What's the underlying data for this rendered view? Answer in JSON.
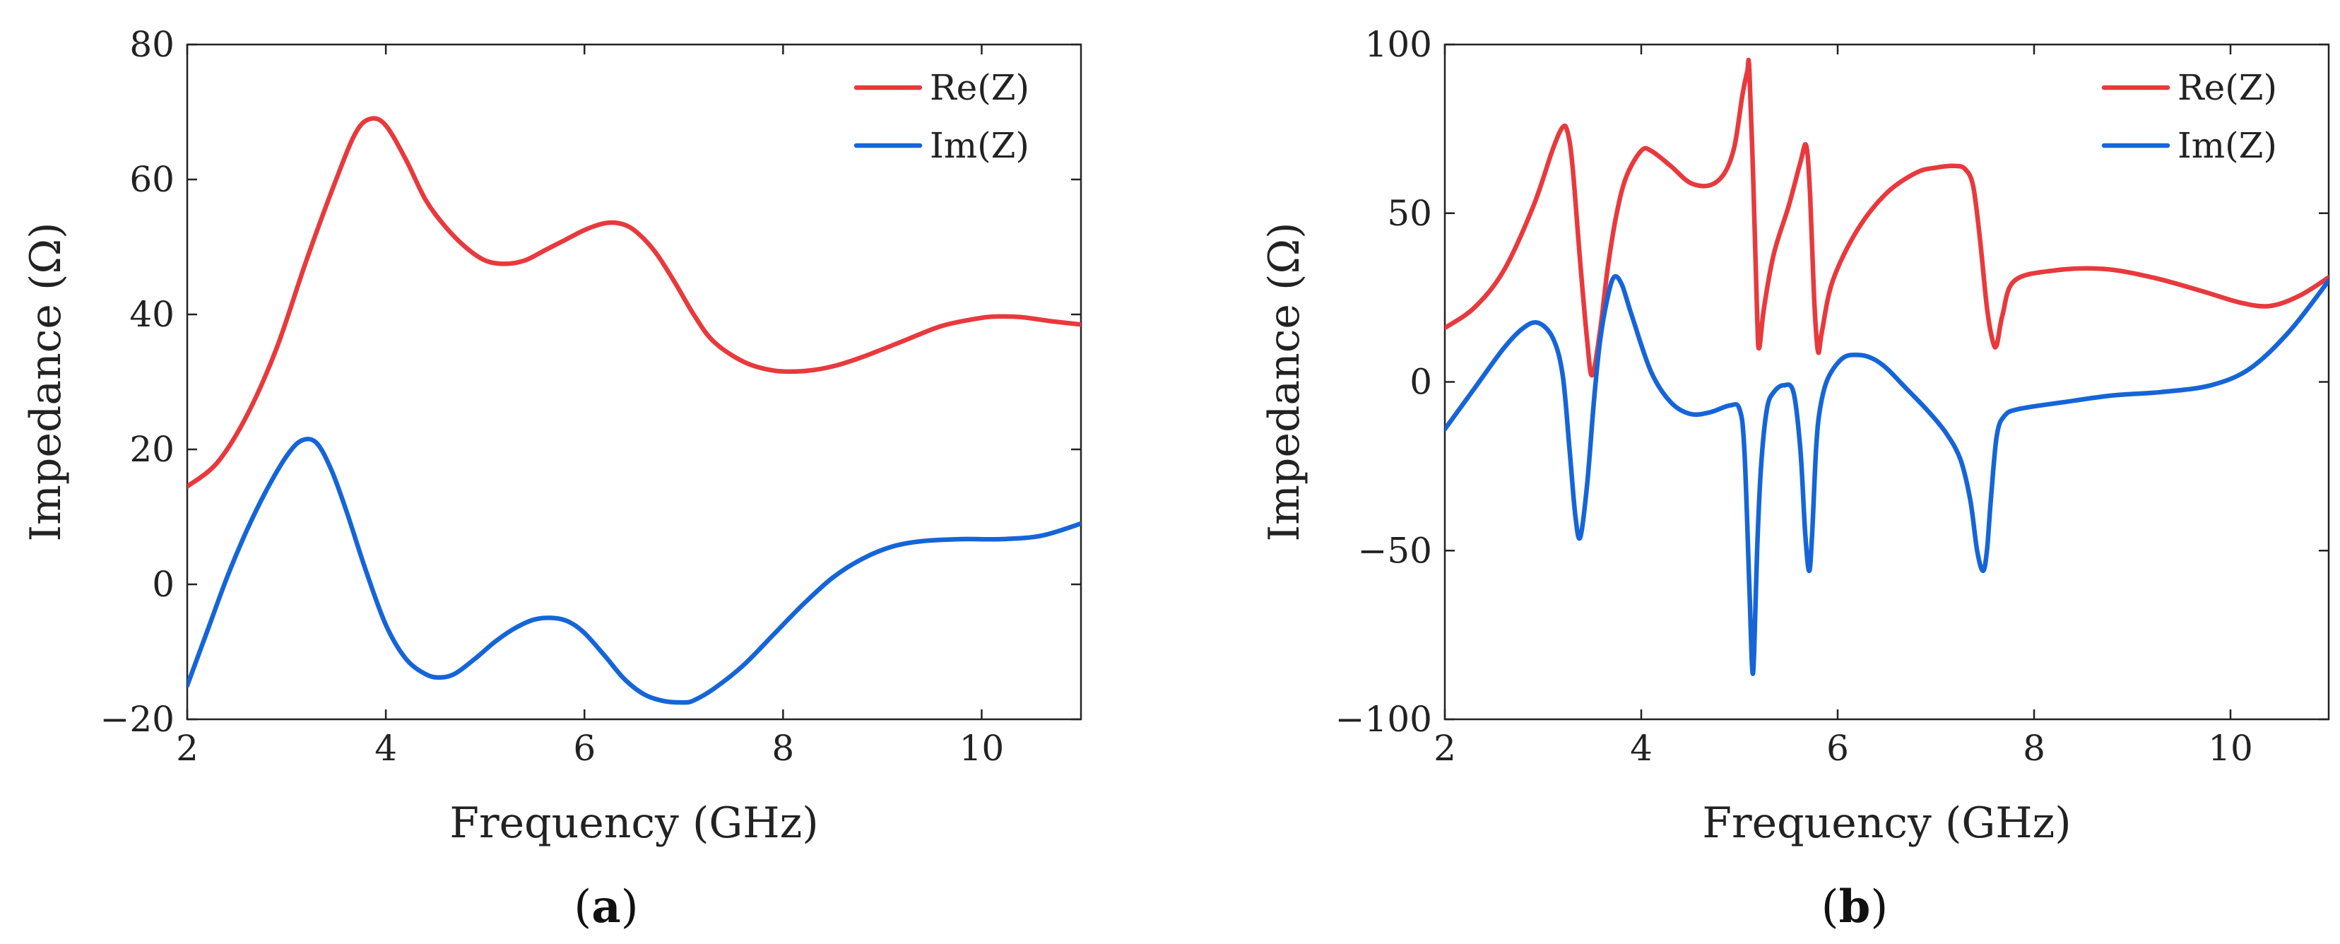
{
  "colors": {
    "re": "#e8393d",
    "im": "#1565d8",
    "axis": "#222222"
  },
  "chart_data": [
    {
      "type": "line",
      "panel": "a",
      "caption": {
        "open": "(",
        "letter": "a",
        "close": ")"
      },
      "xlabel": "Frequency (GHz)",
      "ylabel": "Impedance (Ω)",
      "xlim": [
        2,
        11
      ],
      "ylim": [
        -20,
        80
      ],
      "xticks": [
        2,
        4,
        6,
        8,
        10
      ],
      "xtick_labels": [
        "2",
        "4",
        "6",
        "8",
        "10"
      ],
      "yticks": [
        -20,
        0,
        20,
        40,
        60,
        80
      ],
      "ytick_labels": [
        "−20",
        "0",
        "20",
        "40",
        "60",
        "80"
      ],
      "grid": false,
      "legend_position": "top-right",
      "series": [
        {
          "name": "Re(Z)",
          "color": "#e8393d",
          "x": [
            2.0,
            2.3,
            2.6,
            2.9,
            3.2,
            3.5,
            3.7,
            3.85,
            4.0,
            4.2,
            4.4,
            4.6,
            4.8,
            5.0,
            5.2,
            5.4,
            5.6,
            5.8,
            6.0,
            6.2,
            6.35,
            6.5,
            6.7,
            6.9,
            7.1,
            7.3,
            7.6,
            7.9,
            8.2,
            8.5,
            8.8,
            9.2,
            9.6,
            10.0,
            10.2,
            10.4,
            10.7,
            11.0
          ],
          "values": [
            14.5,
            18,
            25,
            35,
            48,
            60,
            67,
            69,
            68,
            63,
            57,
            53,
            50,
            48,
            47.5,
            48,
            49.5,
            51,
            52.5,
            53.5,
            53.5,
            52.5,
            49.5,
            45,
            40,
            36,
            33,
            31.7,
            31.6,
            32.3,
            33.7,
            36,
            38.3,
            39.5,
            39.7,
            39.6,
            39,
            38.5
          ]
        },
        {
          "name": "Im(Z)",
          "color": "#1565d8",
          "x": [
            2.0,
            2.2,
            2.4,
            2.6,
            2.8,
            3.0,
            3.15,
            3.3,
            3.45,
            3.6,
            3.8,
            4.0,
            4.2,
            4.4,
            4.55,
            4.7,
            4.9,
            5.1,
            5.3,
            5.5,
            5.7,
            5.85,
            6.0,
            6.2,
            6.4,
            6.6,
            6.8,
            7.0,
            7.1,
            7.3,
            7.6,
            7.9,
            8.2,
            8.5,
            8.8,
            9.1,
            9.4,
            9.8,
            10.2,
            10.6,
            11.0
          ],
          "values": [
            -15,
            -7,
            1,
            8,
            14,
            19,
            21.3,
            21,
            17,
            11,
            2,
            -6,
            -11,
            -13.3,
            -13.8,
            -13.2,
            -11,
            -8.5,
            -6.5,
            -5.2,
            -5,
            -5.6,
            -7.2,
            -10.5,
            -14,
            -16.3,
            -17.3,
            -17.5,
            -17.2,
            -15.5,
            -12,
            -7.5,
            -3,
            1,
            3.8,
            5.6,
            6.4,
            6.7,
            6.7,
            7.2,
            9
          ]
        }
      ]
    },
    {
      "type": "line",
      "panel": "b",
      "caption": {
        "open": "(",
        "letter": "b",
        "close": ")"
      },
      "xlabel": "Frequency (GHz)",
      "ylabel": "Impedance (Ω)",
      "xlim": [
        2,
        11
      ],
      "ylim": [
        -100,
        100
      ],
      "xticks": [
        2,
        4,
        6,
        8,
        10
      ],
      "xtick_labels": [
        "2",
        "4",
        "6",
        "8",
        "10"
      ],
      "yticks": [
        -100,
        -50,
        0,
        50,
        100
      ],
      "ytick_labels": [
        "−100",
        "−50",
        "0",
        "50",
        "100"
      ],
      "grid": false,
      "legend_position": "top-right",
      "series": [
        {
          "name": "Re(Z)",
          "color": "#e8393d",
          "x": [
            2.0,
            2.3,
            2.6,
            2.9,
            3.1,
            3.2,
            3.25,
            3.3,
            3.38,
            3.45,
            3.5,
            3.58,
            3.66,
            3.75,
            3.85,
            4.0,
            4.1,
            4.3,
            4.5,
            4.7,
            4.85,
            4.95,
            5.03,
            5.08,
            5.1,
            5.14,
            5.18,
            5.2,
            5.25,
            5.35,
            5.5,
            5.62,
            5.68,
            5.72,
            5.76,
            5.8,
            5.84,
            5.95,
            6.2,
            6.5,
            6.8,
            7.0,
            7.2,
            7.3,
            7.38,
            7.45,
            7.52,
            7.58,
            7.62,
            7.68,
            7.8,
            8.2,
            8.7,
            9.2,
            9.7,
            10.1,
            10.4,
            10.7,
            11.0
          ],
          "values": [
            16,
            22,
            33,
            52,
            69,
            75.5,
            74,
            64,
            35,
            12,
            2,
            15,
            34,
            50,
            61,
            68.5,
            68.5,
            64,
            59,
            58.3,
            62,
            70,
            85,
            92,
            93,
            60,
            20,
            10,
            22,
            38,
            52,
            65,
            70,
            55,
            25,
            9,
            15,
            30,
            45,
            56,
            62,
            63.5,
            64,
            63,
            58,
            42,
            22,
            12,
            11,
            20,
            30,
            33,
            33.5,
            31,
            27,
            23.5,
            22.5,
            25.5,
            31
          ]
        },
        {
          "name": "Im(Z)",
          "color": "#1565d8",
          "x": [
            2.0,
            2.3,
            2.6,
            2.8,
            2.95,
            3.1,
            3.2,
            3.27,
            3.33,
            3.38,
            3.45,
            3.52,
            3.58,
            3.65,
            3.72,
            3.8,
            3.9,
            4.1,
            4.3,
            4.5,
            4.7,
            4.9,
            5.0,
            5.05,
            5.1,
            5.13,
            5.15,
            5.18,
            5.22,
            5.28,
            5.35,
            5.45,
            5.55,
            5.62,
            5.67,
            5.71,
            5.74,
            5.78,
            5.82,
            5.9,
            6.05,
            6.2,
            6.35,
            6.5,
            6.7,
            6.9,
            7.1,
            7.25,
            7.35,
            7.42,
            7.48,
            7.52,
            7.56,
            7.62,
            7.7,
            7.85,
            8.3,
            8.8,
            9.3,
            9.8,
            10.2,
            10.6,
            11.0
          ],
          "values": [
            -14,
            -2,
            10,
            16,
            17.5,
            13,
            2,
            -20,
            -40,
            -46,
            -30,
            -5,
            12,
            24,
            31,
            29,
            20,
            3,
            -6,
            -9.5,
            -9,
            -7,
            -8,
            -20,
            -60,
            -85,
            -80,
            -50,
            -25,
            -8,
            -3,
            -1,
            -3,
            -20,
            -45,
            -56,
            -45,
            -20,
            -8,
            1,
            7,
            8,
            7,
            4,
            -2,
            -8,
            -15,
            -23,
            -35,
            -50,
            -56,
            -50,
            -35,
            -16,
            -10,
            -8,
            -6,
            -4,
            -3,
            -1,
            4,
            15,
            30
          ]
        }
      ]
    }
  ]
}
